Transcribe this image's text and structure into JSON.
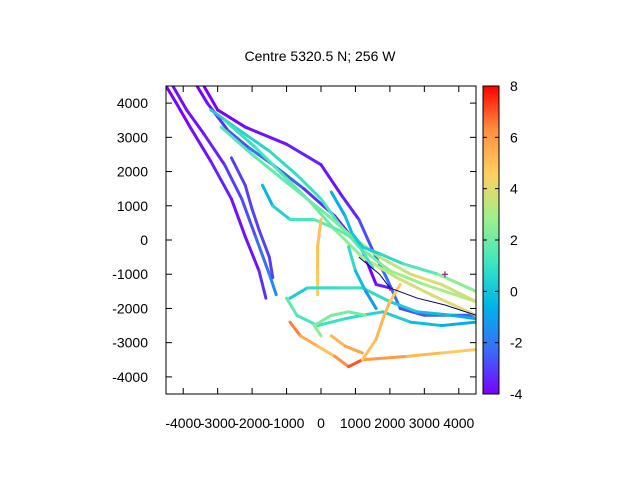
{
  "chart_data": {
    "type": "scatter",
    "title": "Centre 5320.5 N; 256  W",
    "xlabel": "",
    "ylabel": "",
    "xlim": [
      -4500,
      4500
    ],
    "ylim": [
      -4500,
      4500
    ],
    "x_ticks": [
      -4000,
      -3000,
      -2000,
      -1000,
      0,
      1000,
      2000,
      3000,
      4000
    ],
    "x_tick_labels": [
      "-4000",
      "-3000",
      "-2000",
      "-1000",
      "0",
      "1000",
      "2000",
      "3000",
      "4000"
    ],
    "y_ticks": [
      -4000,
      -3000,
      -2000,
      -1000,
      0,
      1000,
      2000,
      3000,
      4000
    ],
    "y_tick_labels": [
      "-4000",
      "-3000",
      "-2000",
      "-1000",
      "0",
      "1000",
      "2000",
      "3000",
      "4000"
    ],
    "colorbar": {
      "range": [
        -4,
        8
      ],
      "ticks": [
        -4,
        -2,
        0,
        2,
        4,
        6,
        8
      ],
      "tick_labels": [
        "-4",
        "-2",
        "0",
        "2",
        "4",
        "6",
        "8"
      ],
      "palette": [
        "#7a00ff",
        "#3a6cf7",
        "#00b4e6",
        "#3ee6c0",
        "#a0f08a",
        "#ffd060",
        "#ff9040",
        "#ff0000"
      ]
    },
    "grid": false,
    "series": [
      {
        "points": [
          [
            -4500,
            4500
          ],
          [
            -4200,
            4000
          ],
          [
            -3800,
            3300
          ],
          [
            -3200,
            2300
          ],
          [
            -2600,
            1200
          ],
          [
            -2200,
            100
          ],
          [
            -1800,
            -900
          ],
          [
            -1600,
            -1700
          ]
        ],
        "values": [
          -4,
          -4,
          -4,
          -3.5,
          -3.5,
          -4,
          -3.5,
          -3
        ]
      },
      {
        "points": [
          [
            -4300,
            4500
          ],
          [
            -3900,
            3800
          ],
          [
            -3400,
            3100
          ],
          [
            -2800,
            2200
          ],
          [
            -2300,
            1200
          ],
          [
            -1900,
            100
          ],
          [
            -1500,
            -1000
          ],
          [
            -1300,
            -1600
          ]
        ],
        "values": [
          -4,
          -3.5,
          -4,
          -3,
          -3,
          -2.5,
          -2,
          -1
        ]
      },
      {
        "points": [
          [
            -3600,
            4500
          ],
          [
            -3300,
            4000
          ],
          [
            -3000,
            3600
          ],
          [
            -2700,
            3200
          ],
          [
            -2100,
            2700
          ],
          [
            -1400,
            2200
          ],
          [
            -500,
            1500
          ],
          [
            400,
            700
          ],
          [
            1200,
            -300
          ],
          [
            1600,
            -1300
          ],
          [
            2000,
            -1400
          ]
        ],
        "values": [
          -4,
          -4,
          -3.5,
          -3,
          -2.5,
          -2,
          -3,
          -3.5,
          -4,
          -4,
          -3
        ]
      },
      {
        "points": [
          [
            -3400,
            4500
          ],
          [
            -3000,
            3800
          ],
          [
            -2200,
            3300
          ],
          [
            -1000,
            2800
          ],
          [
            0,
            2200
          ],
          [
            600,
            1300
          ],
          [
            1100,
            600
          ],
          [
            1500,
            -300
          ],
          [
            1900,
            -1100
          ],
          [
            2300,
            -2000
          ],
          [
            3000,
            -2200
          ],
          [
            4500,
            -2200
          ]
        ],
        "values": [
          -4,
          -4,
          -4,
          -3.5,
          -3.5,
          -4,
          -3,
          -2.5,
          -2,
          -2.5,
          -3,
          -2
        ]
      },
      {
        "points": [
          [
            -3200,
            3800
          ],
          [
            -2500,
            3300
          ],
          [
            -1500,
            2600
          ],
          [
            -700,
            1900
          ],
          [
            0,
            1200
          ],
          [
            500,
            500
          ],
          [
            1100,
            -200
          ],
          [
            2000,
            -900
          ],
          [
            3000,
            -1300
          ],
          [
            4500,
            -1800
          ]
        ],
        "values": [
          0,
          0.5,
          0.5,
          1,
          1,
          1.5,
          2,
          2.5,
          3,
          3
        ]
      },
      {
        "points": [
          [
            -2800,
            3500
          ],
          [
            -1900,
            2700
          ],
          [
            -1000,
            1800
          ],
          [
            -300,
            1100
          ],
          [
            400,
            300
          ],
          [
            1200,
            -500
          ],
          [
            2200,
            -1100
          ],
          [
            3200,
            -1600
          ],
          [
            4500,
            -2200
          ]
        ],
        "values": [
          1,
          1,
          1.5,
          2,
          2,
          3,
          3.5,
          4,
          4
        ]
      },
      {
        "points": [
          [
            -2900,
            3300
          ],
          [
            -2000,
            2500
          ],
          [
            -900,
            1600
          ],
          [
            100,
            800
          ],
          [
            900,
            100
          ],
          [
            1700,
            -500
          ],
          [
            2600,
            -1000
          ],
          [
            3500,
            -1300
          ],
          [
            4500,
            -1800
          ]
        ],
        "values": [
          1.5,
          1.5,
          2,
          2,
          2.5,
          3,
          4,
          4,
          3.5
        ]
      },
      {
        "points": [
          [
            -2600,
            2400
          ],
          [
            -2200,
            1600
          ],
          [
            -2000,
            900
          ],
          [
            -1800,
            300
          ],
          [
            -1500,
            -500
          ],
          [
            -1400,
            -1100
          ]
        ],
        "values": [
          -3,
          -3,
          -3,
          -3,
          -3,
          -3
        ]
      },
      {
        "points": [
          [
            -1700,
            1600
          ],
          [
            -1400,
            1000
          ],
          [
            -900,
            600
          ],
          [
            -200,
            600
          ],
          [
            500,
            300
          ],
          [
            1000,
            0
          ],
          [
            1500,
            -800
          ]
        ],
        "values": [
          -1,
          0,
          1,
          1.5,
          2,
          1.5,
          1
        ]
      },
      {
        "points": [
          [
            0,
            600
          ],
          [
            -100,
            -200
          ],
          [
            -100,
            -900
          ],
          [
            -100,
            -1600
          ]
        ],
        "values": [
          5,
          5,
          5,
          4.5
        ]
      },
      {
        "points": [
          [
            -900,
            -1700
          ],
          [
            -400,
            -1400
          ],
          [
            500,
            -1400
          ],
          [
            1200,
            -1400
          ],
          [
            2000,
            -1800
          ],
          [
            2800,
            -2100
          ],
          [
            3800,
            -2200
          ],
          [
            4500,
            -2300
          ]
        ],
        "values": [
          0,
          0.5,
          1,
          1,
          0.5,
          0,
          -0.5,
          -1
        ]
      },
      {
        "points": [
          [
            -1000,
            -1700
          ],
          [
            -700,
            -2200
          ],
          [
            -100,
            -2500
          ],
          [
            700,
            -2300
          ],
          [
            1200,
            -2200
          ],
          [
            1800,
            -2100
          ],
          [
            2600,
            -2400
          ],
          [
            3500,
            -2500
          ],
          [
            4500,
            -2400
          ]
        ],
        "values": [
          2,
          1.5,
          1,
          1,
          0.5,
          0.5,
          0,
          -0.5,
          -1
        ]
      },
      {
        "points": [
          [
            -900,
            -2400
          ],
          [
            -600,
            -2800
          ],
          [
            -100,
            -3100
          ],
          [
            400,
            -3400
          ],
          [
            800,
            -3700
          ],
          [
            1200,
            -3500
          ],
          [
            2500,
            -3400
          ],
          [
            3500,
            -3300
          ],
          [
            4500,
            -3200
          ]
        ],
        "values": [
          7,
          6,
          5,
          5,
          7.5,
          6.5,
          5.5,
          5,
          4.5
        ]
      },
      {
        "points": [
          [
            1200,
            -3500
          ],
          [
            1600,
            -2900
          ],
          [
            1800,
            -2300
          ],
          [
            2000,
            -1800
          ],
          [
            2300,
            -1300
          ]
        ],
        "values": [
          5,
          5,
          5.5,
          5,
          4.5
        ]
      },
      {
        "points": [
          [
            300,
            -2800
          ],
          [
            700,
            -3100
          ],
          [
            1200,
            -3300
          ]
        ],
        "values": [
          5,
          5.5,
          6
        ]
      },
      {
        "points": [
          [
            1300,
            -2200
          ],
          [
            800,
            -2100
          ],
          [
            300,
            -2200
          ],
          [
            -200,
            -2500
          ],
          [
            0,
            -2800
          ]
        ],
        "values": [
          2,
          2,
          2.5,
          2,
          3
        ]
      },
      {
        "points": [
          [
            300,
            1400
          ],
          [
            700,
            700
          ],
          [
            900,
            200
          ],
          [
            1200,
            -200
          ],
          [
            1700,
            -400
          ],
          [
            2400,
            -700
          ],
          [
            3400,
            -1000
          ],
          [
            4500,
            -1500
          ]
        ],
        "values": [
          -1,
          -0.5,
          0,
          0,
          0.5,
          1,
          2,
          3
        ]
      },
      {
        "points": [
          [
            800,
            -200
          ],
          [
            1000,
            -900
          ],
          [
            1300,
            -1500
          ],
          [
            1600,
            -2000
          ]
        ],
        "values": [
          1,
          0.5,
          -1,
          -1.5
        ]
      }
    ],
    "overlay_line": {
      "points": [
        [
          1100,
          -500
        ],
        [
          1700,
          -1000
        ],
        [
          2000,
          -1400
        ],
        [
          2800,
          -1700
        ],
        [
          3600,
          -1900
        ],
        [
          4500,
          -2200
        ]
      ],
      "color": "#000080"
    },
    "markers": {
      "points": [
        [
          2000,
          -1400
        ],
        [
          3600,
          -1000
        ]
      ],
      "color": "#800080"
    }
  }
}
